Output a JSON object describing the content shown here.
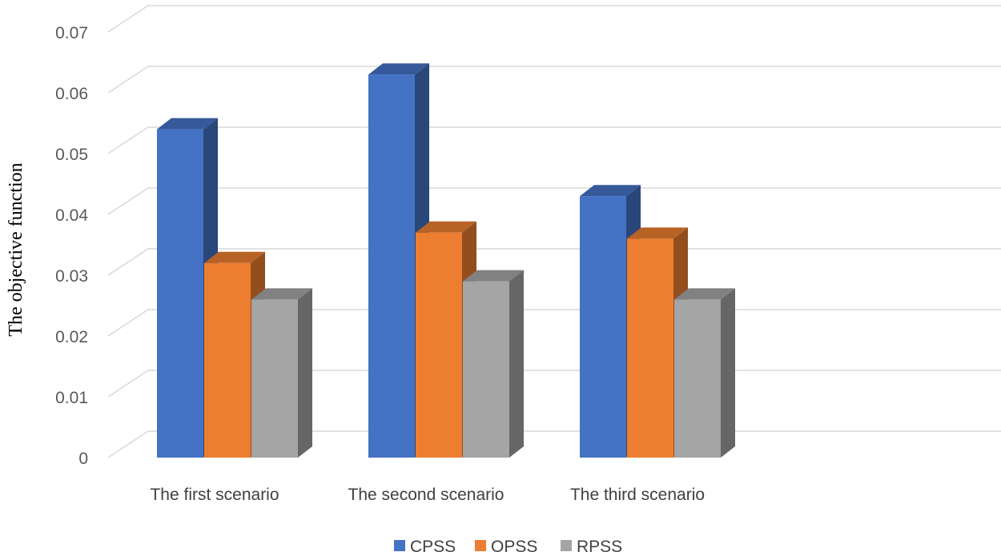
{
  "chart_data": {
    "type": "bar",
    "style": "3d-clustered-column",
    "title": "",
    "xlabel": "",
    "ylabel": "The objective function",
    "categories": [
      "The first scenario",
      "The second scenario",
      "The third scenario"
    ],
    "series": [
      {
        "name": "CPSS",
        "color": "#4472c4",
        "values": [
          0.054,
          0.063,
          0.043
        ]
      },
      {
        "name": "OPSS",
        "color": "#ed7d31",
        "values": [
          0.032,
          0.037,
          0.036
        ]
      },
      {
        "name": "RPSS",
        "color": "#a5a5a5",
        "values": [
          0.026,
          0.029,
          0.026
        ]
      }
    ],
    "ylim": [
      0,
      0.07
    ],
    "yticks": [
      "0",
      "0.01",
      "0.02",
      "0.03",
      "0.04",
      "0.05",
      "0.06",
      "0.07"
    ],
    "grid": true,
    "legend_position": "bottom"
  }
}
